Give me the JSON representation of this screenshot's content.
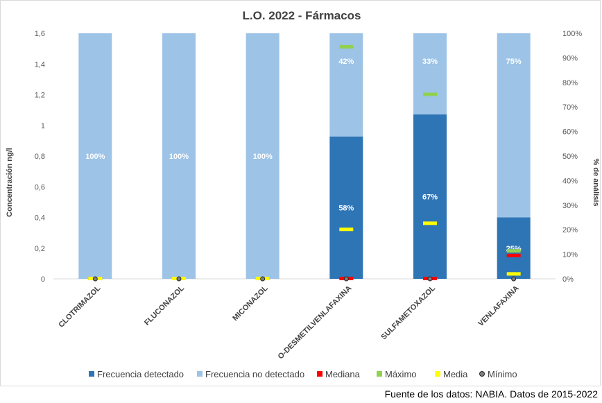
{
  "chart_data": {
    "type": "bar",
    "title": "L.O. 2022 - Fármacos",
    "ylabel": "Concentración ng/l",
    "y2label": "% de análisis",
    "ylim": [
      0,
      1.6
    ],
    "y2lim": [
      0,
      100
    ],
    "yticks": [
      "0",
      "0,2",
      "0,4",
      "0,6",
      "0,8",
      "1",
      "1,2",
      "1,4",
      "1,6"
    ],
    "y2ticks": [
      "0%",
      "10%",
      "20%",
      "30%",
      "40%",
      "50%",
      "60%",
      "70%",
      "80%",
      "90%",
      "100%"
    ],
    "categories": [
      "CLOTRIMAZOL",
      "FLUCONAZOL",
      "MICONAZOL",
      "O-DESMETILVENLAFAXINA",
      "SULFAMETOXAZOL",
      "VENLAFAXINA"
    ],
    "series": [
      {
        "name": "Frecuencia detectado",
        "axis": "right",
        "stack": "freq",
        "color": "#2e75b6",
        "values": [
          0,
          0,
          0,
          58,
          67,
          25
        ]
      },
      {
        "name": "Frecuencia no detectado",
        "axis": "right",
        "stack": "freq",
        "color": "#9dc3e6",
        "values": [
          100,
          100,
          100,
          42,
          33,
          75
        ]
      },
      {
        "name": "Mediana",
        "axis": "left",
        "marker": "dash",
        "color": "#ff0000",
        "values": [
          0,
          0,
          0,
          0,
          0,
          0.15
        ]
      },
      {
        "name": "Máximo",
        "axis": "left",
        "marker": "dash",
        "color": "#92d050",
        "values": [
          0,
          0,
          0,
          1.51,
          1.2,
          0.18
        ]
      },
      {
        "name": "Media",
        "axis": "left",
        "marker": "dash",
        "color": "#ffff00",
        "values": [
          0,
          0,
          0,
          0.32,
          0.36,
          0.03
        ]
      },
      {
        "name": "Mínimo",
        "axis": "left",
        "marker": "circle",
        "color": "#808080",
        "values": [
          0,
          0,
          0,
          0,
          0,
          0
        ]
      }
    ],
    "data_labels": {
      "Frecuencia detectado": [
        "",
        "",
        "",
        "58%",
        "67%",
        "25%"
      ],
      "Frecuencia no detectado": [
        "100%",
        "100%",
        "100%",
        "42%",
        "33%",
        "75%"
      ]
    },
    "legend": {
      "placement": "bottom"
    },
    "grid": false
  },
  "source_note": "Fuente de los datos: NABIA. Datos de 2015-2022"
}
